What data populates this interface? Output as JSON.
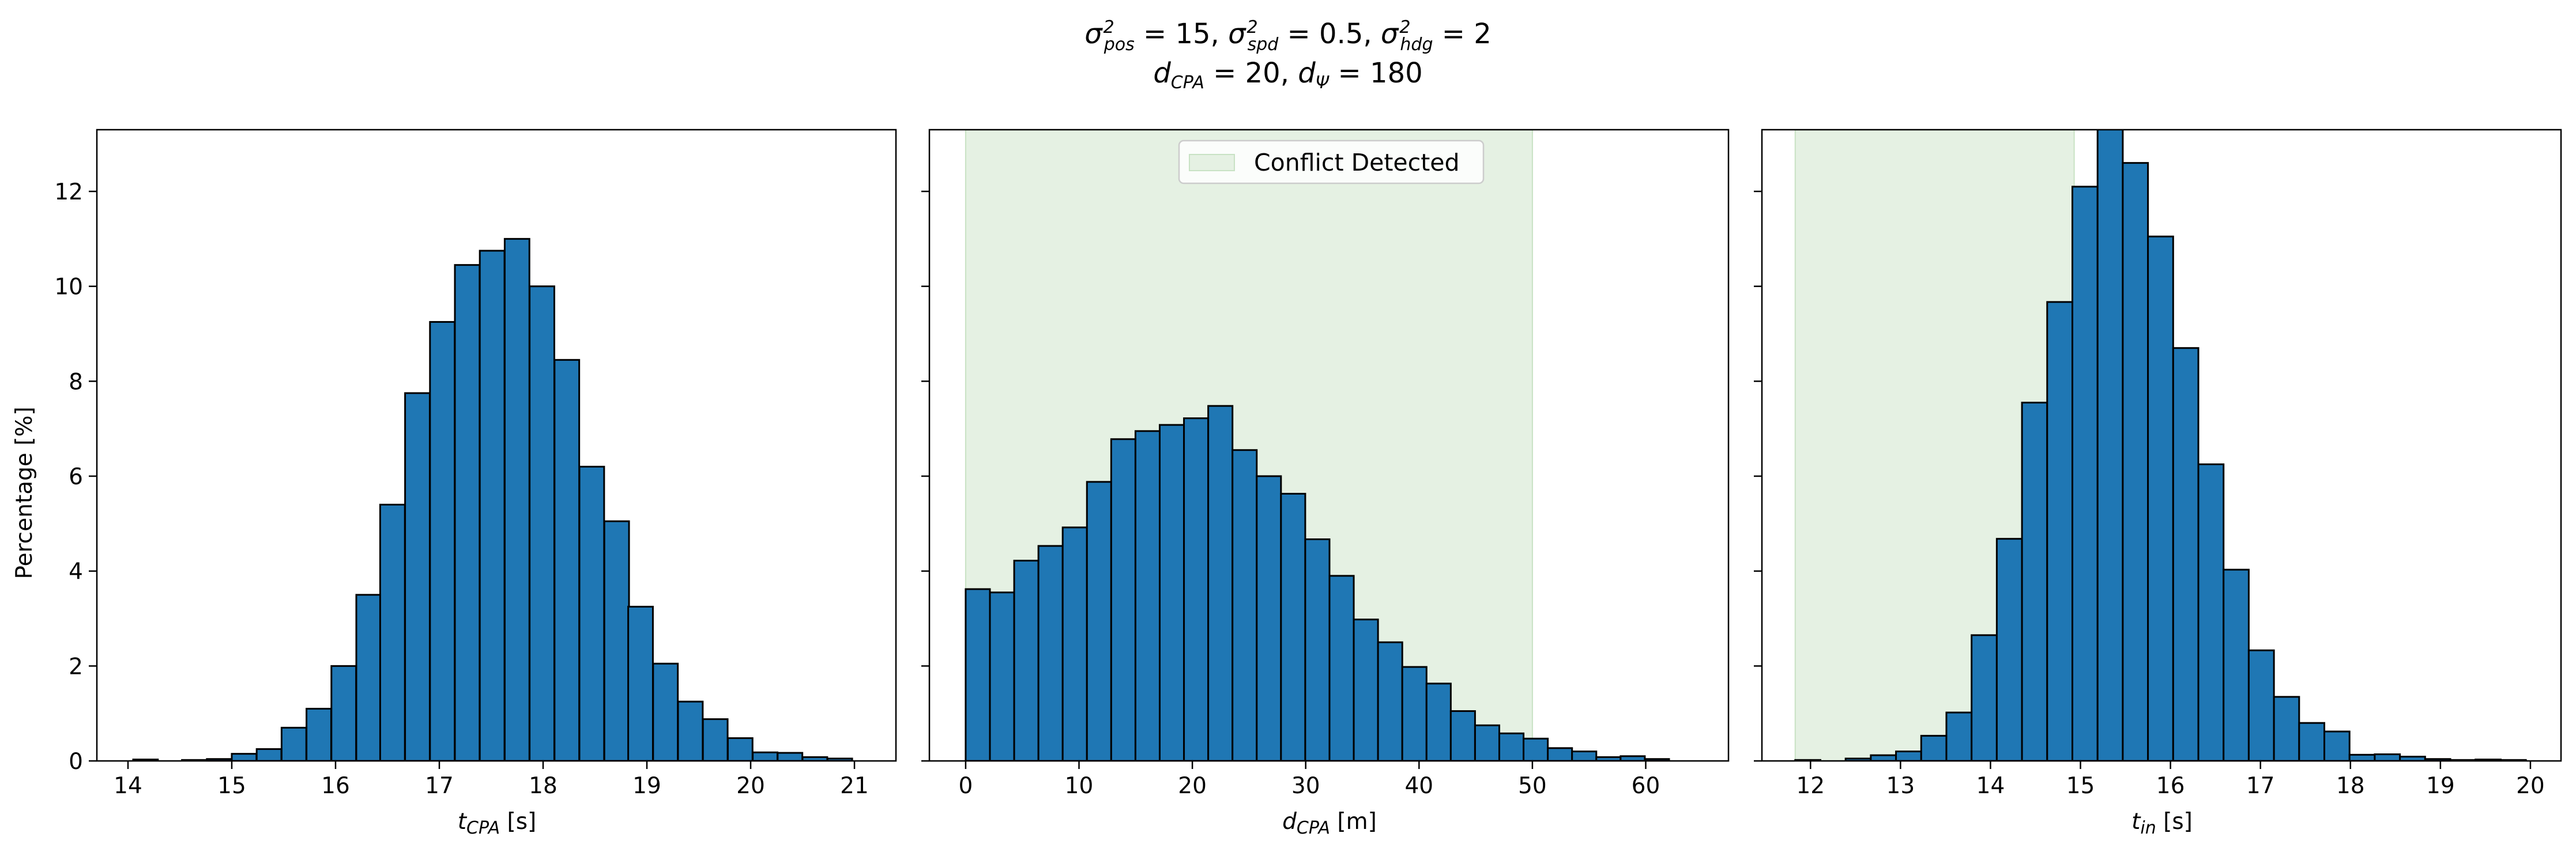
{
  "chart_data": [
    {
      "type": "bar",
      "bins_left_edge": [
        14.05,
        14.29,
        14.52,
        14.76,
        15.0,
        15.24,
        15.48,
        15.72,
        15.96,
        16.2,
        16.43,
        16.67,
        16.91,
        17.15,
        17.39,
        17.63,
        17.87,
        18.11,
        18.35,
        18.59,
        18.82,
        19.06,
        19.3,
        19.54,
        19.78,
        20.02,
        20.26,
        20.5,
        20.74
      ],
      "bin_width": 0.238,
      "values": [
        0.03,
        0.0,
        0.02,
        0.04,
        0.15,
        0.25,
        0.7,
        1.1,
        2.0,
        3.5,
        5.4,
        7.75,
        9.25,
        10.45,
        10.75,
        11.0,
        10.0,
        8.45,
        6.2,
        5.05,
        3.25,
        2.05,
        1.25,
        0.88,
        0.48,
        0.18,
        0.17,
        0.08,
        0.05
      ],
      "xlabel": "t_CPA [s]",
      "ylabel": "Percentage [%]",
      "xlim": [
        13.7,
        21.4
      ],
      "ylim": [
        0,
        13.3
      ],
      "xticks": [
        "14",
        "15",
        "16",
        "17",
        "18",
        "19",
        "20",
        "21"
      ],
      "yticks": [
        "0",
        "2",
        "4",
        "6",
        "8",
        "10",
        "12"
      ]
    },
    {
      "type": "bar",
      "bins_left_edge": [
        0,
        2.14,
        4.28,
        6.42,
        8.56,
        10.7,
        12.84,
        14.98,
        17.12,
        19.26,
        21.4,
        23.54,
        25.68,
        27.82,
        29.96,
        32.1,
        34.24,
        36.38,
        38.52,
        40.66,
        42.8,
        44.94,
        47.08,
        49.22,
        51.36,
        53.5,
        55.64,
        57.78,
        59.92
      ],
      "bin_width": 2.14,
      "values": [
        3.62,
        3.55,
        4.22,
        4.53,
        4.92,
        5.88,
        6.78,
        6.95,
        7.08,
        7.22,
        7.48,
        6.55,
        6.0,
        5.63,
        4.67,
        3.9,
        2.98,
        2.5,
        1.98,
        1.63,
        1.05,
        0.75,
        0.58,
        0.47,
        0.27,
        0.2,
        0.08,
        0.1,
        0.04
      ],
      "xlabel": "d_CPA [m]",
      "xlim": [
        -3.2,
        67.3
      ],
      "ylim": [
        0,
        13.3
      ],
      "xticks": [
        "0",
        "10",
        "20",
        "30",
        "40",
        "50",
        "60"
      ],
      "shaded_region": [
        0,
        50
      ],
      "legend": {
        "entries": [
          "Conflict Detected"
        ],
        "placement": "top-center"
      }
    },
    {
      "type": "bar",
      "bins_left_edge": [
        11.83,
        12.11,
        12.39,
        12.67,
        12.95,
        13.23,
        13.51,
        13.79,
        14.07,
        14.35,
        14.63,
        14.91,
        15.19,
        15.47,
        15.75,
        16.03,
        16.31,
        16.59,
        16.87,
        17.15,
        17.43,
        17.71,
        17.99,
        18.27,
        18.55,
        18.83,
        19.11,
        19.39,
        19.67
      ],
      "bin_width": 0.28,
      "values": [
        0.02,
        0.0,
        0.05,
        0.12,
        0.2,
        0.53,
        1.02,
        2.65,
        4.68,
        7.55,
        9.67,
        12.1,
        13.35,
        12.6,
        11.05,
        8.7,
        6.25,
        4.03,
        2.33,
        1.35,
        0.8,
        0.62,
        0.13,
        0.14,
        0.09,
        0.04,
        0.02,
        0.03,
        0.02
      ],
      "xlabel": "t_in [s]",
      "xlim": [
        11.46,
        20.34
      ],
      "ylim": [
        0,
        13.3
      ],
      "xticks": [
        "12",
        "13",
        "14",
        "15",
        "16",
        "17",
        "18",
        "19",
        "20"
      ],
      "shaded_region": [
        11.83,
        14.93
      ]
    }
  ],
  "colors": {
    "bar_fill": "#1f77b4",
    "bar_edge": "#000000",
    "shade_fill": "#e5f1e3",
    "shade_edge": "#c8e2c4"
  },
  "text": {
    "title_line1": {
      "s1": "σ",
      "sub1": "pos",
      "eq1": " = 15, ",
      "s2": "σ",
      "sub2": "spd",
      "eq2": " = 0.5, ",
      "s3": "σ",
      "sub3": "hdg",
      "eq3": " = 2"
    },
    "title_line2": {
      "d1": "d",
      "sub1": "CPA",
      "eq1": " = 20, ",
      "d2": "d",
      "sub2": "Ψ",
      "eq2": " = 180"
    },
    "ylabel": "Percentage [%]",
    "xlabel1": {
      "sym": "t",
      "sub": "CPA",
      "unit": " [s]"
    },
    "xlabel2": {
      "sym": "d",
      "sub": "CPA",
      "unit": " [m]"
    },
    "xlabel3": {
      "sym": "t",
      "sub": "in",
      "unit": " [s]"
    },
    "legend_label": "Conflict Detected"
  }
}
